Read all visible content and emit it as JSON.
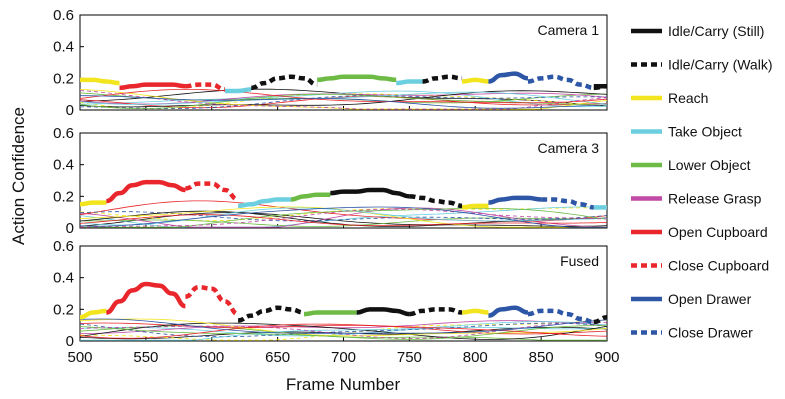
{
  "figure": {
    "ylabel": "Action Confidence",
    "xlabel": "Frame Number"
  },
  "legend": [
    {
      "label": "Idle/Carry (Still)",
      "color": "#111111",
      "dashed": false
    },
    {
      "label": "Idle/Carry (Walk)",
      "color": "#111111",
      "dashed": true
    },
    {
      "label": "Reach",
      "color": "#f3e51d",
      "dashed": false
    },
    {
      "label": "Take Object",
      "color": "#6ccfe0",
      "dashed": false
    },
    {
      "label": "Lower Object",
      "color": "#6dbb45",
      "dashed": false
    },
    {
      "label": "Release Grasp",
      "color": "#c14aa6",
      "dashed": false
    },
    {
      "label": "Open Cupboard",
      "color": "#e8262b",
      "dashed": false
    },
    {
      "label": "Close Cupboard",
      "color": "#e8262b",
      "dashed": true
    },
    {
      "label": "Open Drawer",
      "color": "#2e56a6",
      "dashed": false
    },
    {
      "label": "Close Drawer",
      "color": "#2e56a6",
      "dashed": true
    }
  ],
  "chart_data": [
    {
      "type": "line",
      "title": "Camera 1",
      "xlim": [
        500,
        900
      ],
      "ylim": [
        0,
        0.6
      ],
      "yticks": [
        "0",
        "0.2",
        "0.4",
        "0.6"
      ],
      "series": [
        {
          "name": "Reach",
          "x": [
            500,
            510,
            520,
            530,
            790,
            800,
            810
          ],
          "y": [
            0.19,
            0.19,
            0.18,
            0.17,
            0.18,
            0.19,
            0.18
          ]
        },
        {
          "name": "Open Cupboard",
          "x": [
            530,
            540,
            550,
            560,
            570,
            580
          ],
          "y": [
            0.14,
            0.15,
            0.16,
            0.16,
            0.16,
            0.15
          ]
        },
        {
          "name": "Close Cupboard",
          "x": [
            580,
            590,
            600,
            610
          ],
          "y": [
            0.15,
            0.16,
            0.16,
            0.13
          ]
        },
        {
          "name": "Take Object",
          "x": [
            610,
            620,
            630,
            740,
            750,
            760
          ],
          "y": [
            0.12,
            0.12,
            0.13,
            0.17,
            0.18,
            0.18
          ]
        },
        {
          "name": "Idle/Carry (Walk)",
          "x": [
            630,
            640,
            650,
            660,
            670,
            680,
            760,
            770,
            780,
            790,
            890,
            900
          ],
          "y": [
            0.14,
            0.17,
            0.2,
            0.21,
            0.2,
            0.16,
            0.18,
            0.2,
            0.21,
            0.2,
            0.14,
            0.15
          ]
        },
        {
          "name": "Lower Object",
          "x": [
            680,
            690,
            700,
            710,
            720,
            730,
            740
          ],
          "y": [
            0.19,
            0.2,
            0.21,
            0.21,
            0.21,
            0.2,
            0.19
          ]
        },
        {
          "name": "Open Drawer",
          "x": [
            810,
            820,
            830,
            840
          ],
          "y": [
            0.18,
            0.22,
            0.23,
            0.2
          ]
        },
        {
          "name": "Close Drawer",
          "x": [
            840,
            850,
            860,
            870,
            880,
            890
          ],
          "y": [
            0.18,
            0.2,
            0.21,
            0.19,
            0.16,
            0.14
          ]
        },
        {
          "name": "Idle/Carry (Still)",
          "x": [
            890,
            900
          ],
          "y": [
            0.15,
            0.15
          ]
        }
      ]
    },
    {
      "type": "line",
      "title": "Camera 3",
      "xlim": [
        500,
        900
      ],
      "ylim": [
        0,
        0.6
      ],
      "yticks": [
        "0",
        "0.2",
        "0.4",
        "0.6"
      ],
      "series": [
        {
          "name": "Reach",
          "x": [
            500,
            510,
            520,
            790,
            800,
            810
          ],
          "y": [
            0.15,
            0.16,
            0.16,
            0.13,
            0.14,
            0.14
          ]
        },
        {
          "name": "Open Cupboard",
          "x": [
            520,
            530,
            540,
            550,
            560,
            570,
            580
          ],
          "y": [
            0.17,
            0.22,
            0.27,
            0.29,
            0.29,
            0.27,
            0.24
          ]
        },
        {
          "name": "Close Cupboard",
          "x": [
            580,
            590,
            600,
            610,
            620
          ],
          "y": [
            0.25,
            0.28,
            0.28,
            0.24,
            0.18
          ]
        },
        {
          "name": "Take Object",
          "x": [
            620,
            630,
            640,
            650,
            660
          ],
          "y": [
            0.14,
            0.15,
            0.17,
            0.18,
            0.18
          ]
        },
        {
          "name": "Lower Object",
          "x": [
            660,
            670,
            680,
            690
          ],
          "y": [
            0.18,
            0.2,
            0.21,
            0.21
          ]
        },
        {
          "name": "Idle/Carry (Still)",
          "x": [
            690,
            700,
            710,
            720,
            730,
            740,
            750
          ],
          "y": [
            0.22,
            0.23,
            0.23,
            0.24,
            0.24,
            0.22,
            0.2
          ]
        },
        {
          "name": "Idle/Carry (Walk)",
          "x": [
            750,
            760,
            770,
            780,
            790
          ],
          "y": [
            0.2,
            0.19,
            0.17,
            0.16,
            0.14
          ]
        },
        {
          "name": "Open Drawer",
          "x": [
            810,
            820,
            830,
            840,
            850
          ],
          "y": [
            0.16,
            0.18,
            0.19,
            0.19,
            0.18
          ]
        },
        {
          "name": "Close Drawer",
          "x": [
            850,
            860,
            870,
            880,
            890
          ],
          "y": [
            0.18,
            0.18,
            0.17,
            0.15,
            0.13
          ]
        },
        {
          "name": "Take Object (late)",
          "x": [
            890,
            900
          ],
          "y": [
            0.13,
            0.13
          ]
        }
      ]
    },
    {
      "type": "line",
      "title": "Fused",
      "xlim": [
        500,
        900
      ],
      "ylim": [
        0,
        0.6
      ],
      "yticks": [
        "0",
        "0.2",
        "0.4",
        "0.6"
      ],
      "series": [
        {
          "name": "Reach",
          "x": [
            500,
            510,
            520,
            790,
            800,
            810
          ],
          "y": [
            0.15,
            0.18,
            0.19,
            0.18,
            0.19,
            0.18
          ]
        },
        {
          "name": "Open Cupboard",
          "x": [
            520,
            530,
            540,
            550,
            560,
            570,
            580
          ],
          "y": [
            0.18,
            0.25,
            0.32,
            0.36,
            0.35,
            0.3,
            0.22
          ]
        },
        {
          "name": "Close Cupboard",
          "x": [
            580,
            590,
            600,
            610,
            620
          ],
          "y": [
            0.28,
            0.34,
            0.33,
            0.25,
            0.17
          ]
        },
        {
          "name": "Idle/Carry (Walk)",
          "x": [
            620,
            630,
            640,
            650,
            660,
            670,
            750,
            760,
            770,
            780,
            790,
            890,
            900
          ],
          "y": [
            0.13,
            0.16,
            0.19,
            0.21,
            0.2,
            0.18,
            0.17,
            0.19,
            0.2,
            0.2,
            0.18,
            0.12,
            0.15
          ]
        },
        {
          "name": "Lower Object",
          "x": [
            670,
            680,
            690,
            700,
            710
          ],
          "y": [
            0.17,
            0.18,
            0.18,
            0.18,
            0.18
          ]
        },
        {
          "name": "Idle/Carry (Still)",
          "x": [
            710,
            720,
            730,
            740,
            750
          ],
          "y": [
            0.18,
            0.2,
            0.2,
            0.19,
            0.17
          ]
        },
        {
          "name": "Open Drawer",
          "x": [
            810,
            820,
            830,
            840
          ],
          "y": [
            0.16,
            0.2,
            0.21,
            0.18
          ]
        },
        {
          "name": "Close Drawer",
          "x": [
            840,
            850,
            860,
            870,
            880,
            890
          ],
          "y": [
            0.17,
            0.19,
            0.19,
            0.17,
            0.14,
            0.12
          ]
        }
      ]
    }
  ],
  "xticks": [
    "500",
    "550",
    "600",
    "650",
    "700",
    "750",
    "800",
    "850",
    "900"
  ]
}
